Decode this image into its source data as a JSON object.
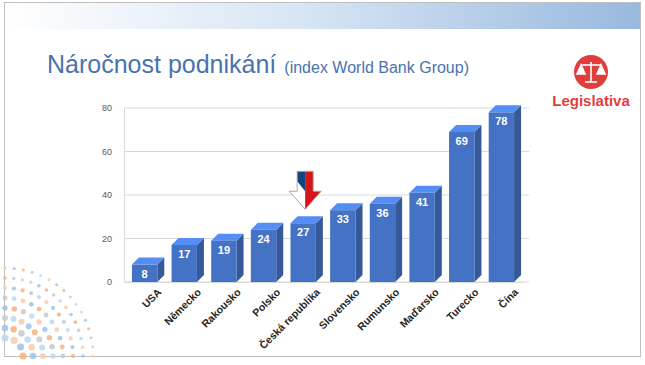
{
  "chart_data": {
    "type": "bar",
    "title": "Náročnost podnikání",
    "subtitle": "(index World Bank Group)",
    "annotations": [
      "Legislativa"
    ],
    "categories": [
      "USA",
      "Německo",
      "Rakousko",
      "Polsko",
      "Česká republika",
      "Slovensko",
      "Rumunsko",
      "Maďarsko",
      "Turecko",
      "Čína"
    ],
    "values": [
      8,
      17,
      19,
      24,
      27,
      33,
      36,
      41,
      69,
      78
    ],
    "color": "#4472c4",
    "ylim": [
      0,
      80
    ],
    "yticks": [
      0,
      20,
      40,
      60,
      80
    ],
    "grid": true,
    "data_labels": true
  }
}
